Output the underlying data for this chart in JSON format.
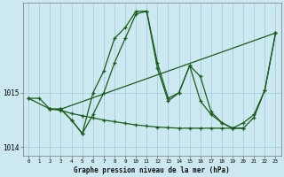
{
  "xlabel": "Graphe pression niveau de la mer (hPa)",
  "bg_color": "#cce8f0",
  "grid_color": "#aaccdd",
  "line_color": "#1a5c1a",
  "ylim": [
    1013.85,
    1016.65
  ],
  "xlim": [
    -0.5,
    23.5
  ],
  "yticks": [
    1014,
    1015
  ],
  "xticks": [
    0,
    1,
    2,
    3,
    4,
    5,
    6,
    7,
    8,
    9,
    10,
    11,
    12,
    13,
    14,
    15,
    16,
    17,
    18,
    19,
    20,
    21,
    22,
    23
  ],
  "line1_x": [
    0,
    1,
    2,
    3,
    4,
    5,
    6,
    7,
    8,
    9,
    10,
    11,
    12,
    13,
    14,
    15,
    16,
    17,
    18,
    19,
    20,
    21,
    22,
    23
  ],
  "line1_y": [
    1014.9,
    1014.9,
    1014.7,
    1014.7,
    1014.5,
    1014.25,
    1014.6,
    1015.0,
    1015.55,
    1016.0,
    1016.45,
    1016.5,
    1015.55,
    1014.9,
    1015.0,
    1015.5,
    1014.85,
    1014.6,
    1014.45,
    1014.35,
    1014.45,
    1014.6,
    1015.05,
    1016.1
  ],
  "line2_x": [
    2,
    3,
    4,
    5,
    6,
    7,
    8,
    9,
    10,
    11,
    12,
    13,
    14,
    15,
    16,
    17,
    18,
    19,
    20,
    21,
    22,
    23
  ],
  "line2_y": [
    1014.7,
    1014.7,
    1014.5,
    1014.25,
    1015.0,
    1015.4,
    1016.0,
    1016.2,
    1016.5,
    1016.5,
    1015.45,
    1014.85,
    1015.0,
    1015.5,
    1015.3,
    1014.65,
    1014.45,
    1014.35,
    1014.35,
    1014.55,
    1015.05,
    1016.1
  ],
  "line3_x": [
    0,
    2,
    3,
    23
  ],
  "line3_y": [
    1014.9,
    1014.7,
    1014.7,
    1016.1
  ],
  "line4_x": [
    2,
    3,
    4,
    5,
    6,
    7,
    8,
    9,
    10,
    11,
    12,
    13,
    14,
    15,
    16,
    17,
    18,
    19,
    20
  ],
  "line4_y": [
    1014.7,
    1014.68,
    1014.62,
    1014.58,
    1014.54,
    1014.5,
    1014.47,
    1014.44,
    1014.41,
    1014.39,
    1014.37,
    1014.36,
    1014.35,
    1014.35,
    1014.35,
    1014.35,
    1014.35,
    1014.35,
    1014.35
  ]
}
